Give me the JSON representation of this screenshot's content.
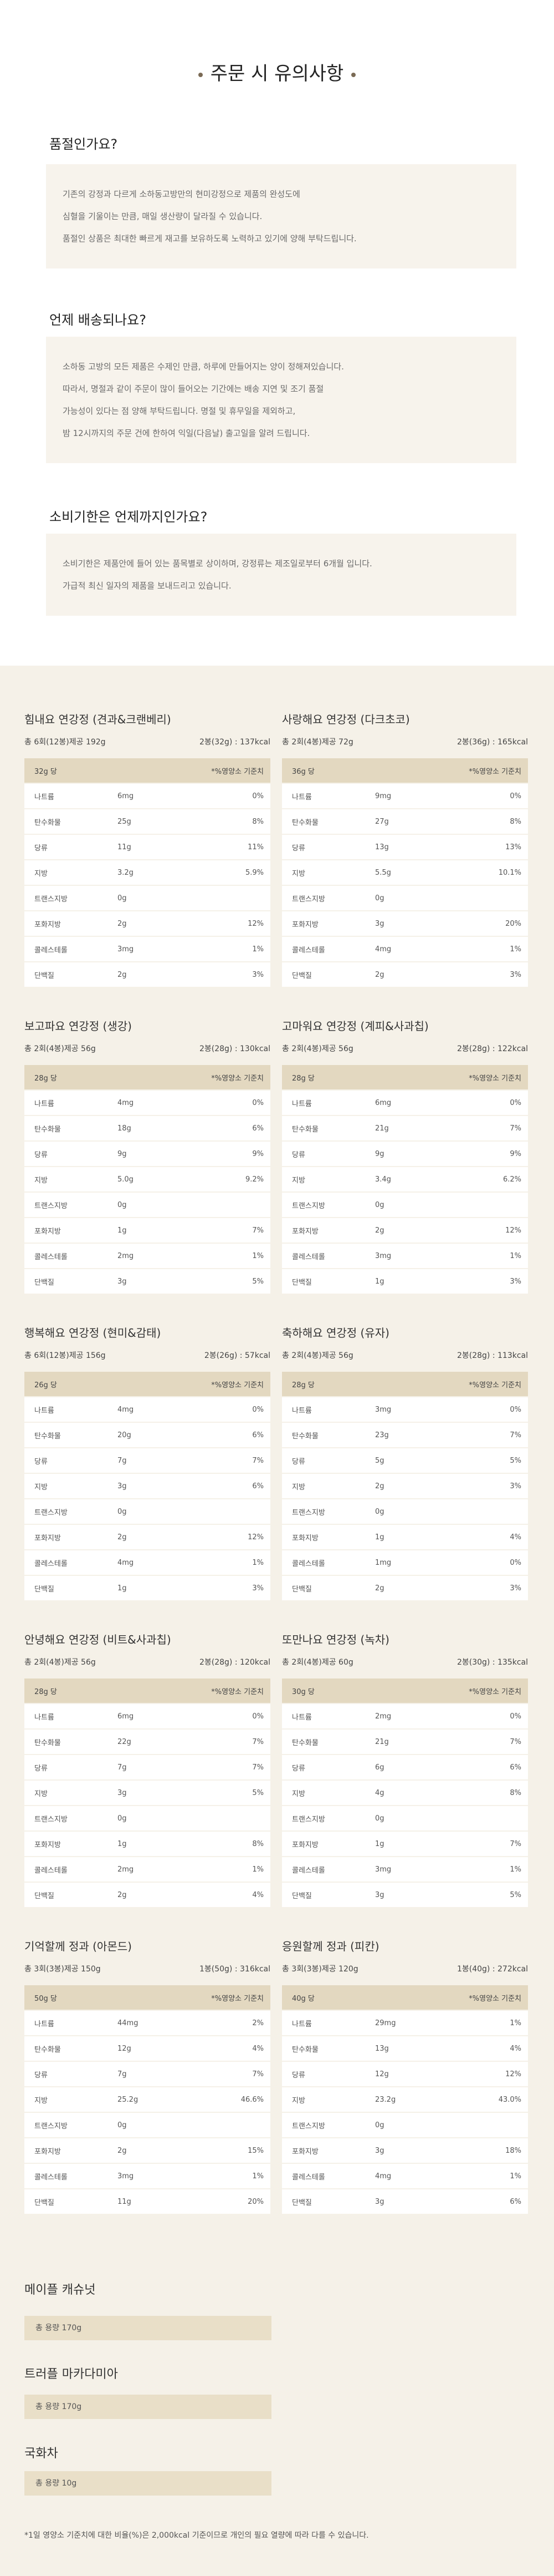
{
  "header": {
    "title": "주문 시 유의사항"
  },
  "faq": [
    {
      "question": "품절인가요?",
      "lines": [
        "기존의 강정과 다르게 소하동고방만의 현미강정으로 제품의 완성도에",
        "심혈을 기울이는 만큼, 매일 생산량이 달라질 수 있습니다.",
        "품절인 상품은 최대한 빠르게 재고를 보유하도록 노력하고 있기에 양해 부탁드립니다."
      ]
    },
    {
      "question": "언제 배송되나요?",
      "lines": [
        "소하동 고방의 모든 제품은 수제인 만큼, 하루에 만들어지는 양이 정해져있습니다.",
        "따라서, 명절과 같이 주문이 많이 들어오는 기간에는 배송 지연 및 조기 품절",
        "가능성이 있다는 점 양해 부탁드립니다. 명절 및 휴무일을 제외하고,",
        "밤 12시까지의 주문 건에 한하여 익일(다음날) 출고일을 알려 드립니다."
      ]
    },
    {
      "question": "소비기한은 언제까지인가요?",
      "lines": [
        "소비기한은 제품안에 들어 있는 품목별로 상이하며, 강정류는 제조일로부터 6개월 입니다.",
        "가급적 최신 일자의 제품을 보내드리고 있습니다."
      ]
    }
  ],
  "nutrition": {
    "nutrients": [
      "나트륨",
      "탄수화물",
      "당류",
      "지방",
      "트랜스지방",
      "포화지방",
      "콜레스테롤",
      "단백질"
    ],
    "daily_value_label": "*%영양소 기준치",
    "products": [
      {
        "name": "힘내요 연강정 (견과&크랜베리)",
        "total": "총 6회(12봉)제공 192g",
        "serving": "2봉(32g) : 137kcal",
        "basis": "32g 당",
        "rows": [
          {
            "amount": "6mg",
            "percent": "0%"
          },
          {
            "amount": "25g",
            "percent": "8%"
          },
          {
            "amount": "11g",
            "percent": "11%"
          },
          {
            "amount": "3.2g",
            "percent": "5.9%"
          },
          {
            "amount": "0g"
          },
          {
            "amount": "2g",
            "percent": "12%"
          },
          {
            "amount": "3mg",
            "percent": "1%"
          },
          {
            "amount": "2g",
            "percent": "3%"
          }
        ]
      },
      {
        "name": "사랑해요 연강정 (다크초코)",
        "total": "총 2회(4봉)제공 72g",
        "serving": "2봉(36g) : 165kcal",
        "basis": "36g 당",
        "rows": [
          {
            "amount": "9mg",
            "percent": "0%"
          },
          {
            "amount": "27g",
            "percent": "8%"
          },
          {
            "amount": "13g",
            "percent": "13%"
          },
          {
            "amount": "5.5g",
            "percent": "10.1%"
          },
          {
            "amount": "0g"
          },
          {
            "amount": "3g",
            "percent": "20%"
          },
          {
            "amount": "4mg",
            "percent": "1%"
          },
          {
            "amount": "2g",
            "percent": "3%"
          }
        ]
      },
      {
        "name": "보고파요 연강정 (생강)",
        "total": "총 2회(4봉)제공 56g",
        "serving": "2봉(28g) : 130kcal",
        "basis": "28g 당",
        "rows": [
          {
            "amount": "4mg",
            "percent": "0%"
          },
          {
            "amount": "18g",
            "percent": "6%"
          },
          {
            "amount": "9g",
            "percent": "9%"
          },
          {
            "amount": "5.0g",
            "percent": "9.2%"
          },
          {
            "amount": "0g"
          },
          {
            "amount": "1g",
            "percent": "7%"
          },
          {
            "amount": "2mg",
            "percent": "1%"
          },
          {
            "amount": "3g",
            "percent": "5%"
          }
        ]
      },
      {
        "name": "고마워요 연강정 (계피&사과칩)",
        "total": "총 2회(4봉)제공 56g",
        "serving": "2봉(28g) : 122kcal",
        "basis": "28g 당",
        "rows": [
          {
            "amount": "6mg",
            "percent": "0%"
          },
          {
            "amount": "21g",
            "percent": "7%"
          },
          {
            "amount": "9g",
            "percent": "9%"
          },
          {
            "amount": "3.4g",
            "percent": "6.2%"
          },
          {
            "amount": "0g"
          },
          {
            "amount": "2g",
            "percent": "12%"
          },
          {
            "amount": "3mg",
            "percent": "1%"
          },
          {
            "amount": "1g",
            "percent": "3%"
          }
        ]
      },
      {
        "name": "행복해요 연강정 (현미&감태)",
        "total": "총 6회(12봉)제공 156g",
        "serving": "2봉(26g) : 57kcal",
        "basis": "26g 당",
        "rows": [
          {
            "amount": "4mg",
            "percent": "0%"
          },
          {
            "amount": "20g",
            "percent": "6%"
          },
          {
            "amount": "7g",
            "percent": "7%"
          },
          {
            "amount": "3g",
            "percent": "6%"
          },
          {
            "amount": "0g"
          },
          {
            "amount": "2g",
            "percent": "12%"
          },
          {
            "amount": "4mg",
            "percent": "1%"
          },
          {
            "amount": "1g",
            "percent": "3%"
          }
        ]
      },
      {
        "name": "축하해요 연강정 (유자)",
        "total": "총 2회(4봉)제공 56g",
        "serving": "2봉(28g) : 113kcal",
        "basis": "28g 당",
        "rows": [
          {
            "amount": "3mg",
            "percent": "0%"
          },
          {
            "amount": "23g",
            "percent": "7%"
          },
          {
            "amount": "5g",
            "percent": "5%"
          },
          {
            "amount": "2g",
            "percent": "3%"
          },
          {
            "amount": "0g"
          },
          {
            "amount": "1g",
            "percent": "4%"
          },
          {
            "amount": "1mg",
            "percent": "0%"
          },
          {
            "amount": "2g",
            "percent": "3%"
          }
        ]
      },
      {
        "name": "안녕해요 연강정 (비트&사과칩)",
        "total": "총 2회(4봉)제공 56g",
        "serving": "2봉(28g) : 120kcal",
        "basis": "28g 당",
        "rows": [
          {
            "amount": "6mg",
            "percent": "0%"
          },
          {
            "amount": "22g",
            "percent": "7%"
          },
          {
            "amount": "7g",
            "percent": "7%"
          },
          {
            "amount": "3g",
            "percent": "5%"
          },
          {
            "amount": "0g"
          },
          {
            "amount": "1g",
            "percent": "8%"
          },
          {
            "amount": "2mg",
            "percent": "1%"
          },
          {
            "amount": "2g",
            "percent": "4%"
          }
        ]
      },
      {
        "name": "또만나요 연강정 (녹차)",
        "total": "총 2회(4봉)제공 60g",
        "serving": "2봉(30g) : 135kcal",
        "basis": "30g 당",
        "rows": [
          {
            "amount": "2mg",
            "percent": "0%"
          },
          {
            "amount": "21g",
            "percent": "7%"
          },
          {
            "amount": "6g",
            "percent": "6%"
          },
          {
            "amount": "4g",
            "percent": "8%"
          },
          {
            "amount": "0g"
          },
          {
            "amount": "1g",
            "percent": "7%"
          },
          {
            "amount": "3mg",
            "percent": "1%"
          },
          {
            "amount": "3g",
            "percent": "5%"
          }
        ]
      },
      {
        "name": "기억할께 정과 (아몬드)",
        "total": "총 3회(3봉)제공 150g",
        "serving": "1봉(50g) : 316kcal",
        "basis": "50g 당",
        "rows": [
          {
            "amount": "44mg",
            "percent": "2%"
          },
          {
            "amount": "12g",
            "percent": "4%"
          },
          {
            "amount": "7g",
            "percent": "7%"
          },
          {
            "amount": "25.2g",
            "percent": "46.6%"
          },
          {
            "amount": "0g"
          },
          {
            "amount": "2g",
            "percent": "15%"
          },
          {
            "amount": "3mg",
            "percent": "1%"
          },
          {
            "amount": "11g",
            "percent": "20%"
          }
        ]
      },
      {
        "name": "응원할께 정과 (피칸)",
        "total": "총 3회(3봉)제공 120g",
        "serving": "1봉(40g) : 272kcal",
        "basis": "40g 당",
        "rows": [
          {
            "amount": "29mg",
            "percent": "1%"
          },
          {
            "amount": "13g",
            "percent": "4%"
          },
          {
            "amount": "12g",
            "percent": "12%"
          },
          {
            "amount": "23.2g",
            "percent": "43.0%"
          },
          {
            "amount": "0g"
          },
          {
            "amount": "3g",
            "percent": "18%"
          },
          {
            "amount": "4mg",
            "percent": "1%"
          },
          {
            "amount": "3g",
            "percent": "6%"
          }
        ]
      }
    ]
  },
  "simple_products": [
    {
      "name": "메이플 캐슈넛",
      "volume": "총 용량 170g"
    },
    {
      "name": "트러플 마카다미아",
      "volume": "총 용량 170g"
    },
    {
      "name": "국화차",
      "volume": "총 용량 10g"
    }
  ],
  "footnote": "*1일 영양소 기준치에 대한 비율(%)은 2,000kcal 기준이므로 개인의 필요 열량에 따라 다를 수 있습니다."
}
